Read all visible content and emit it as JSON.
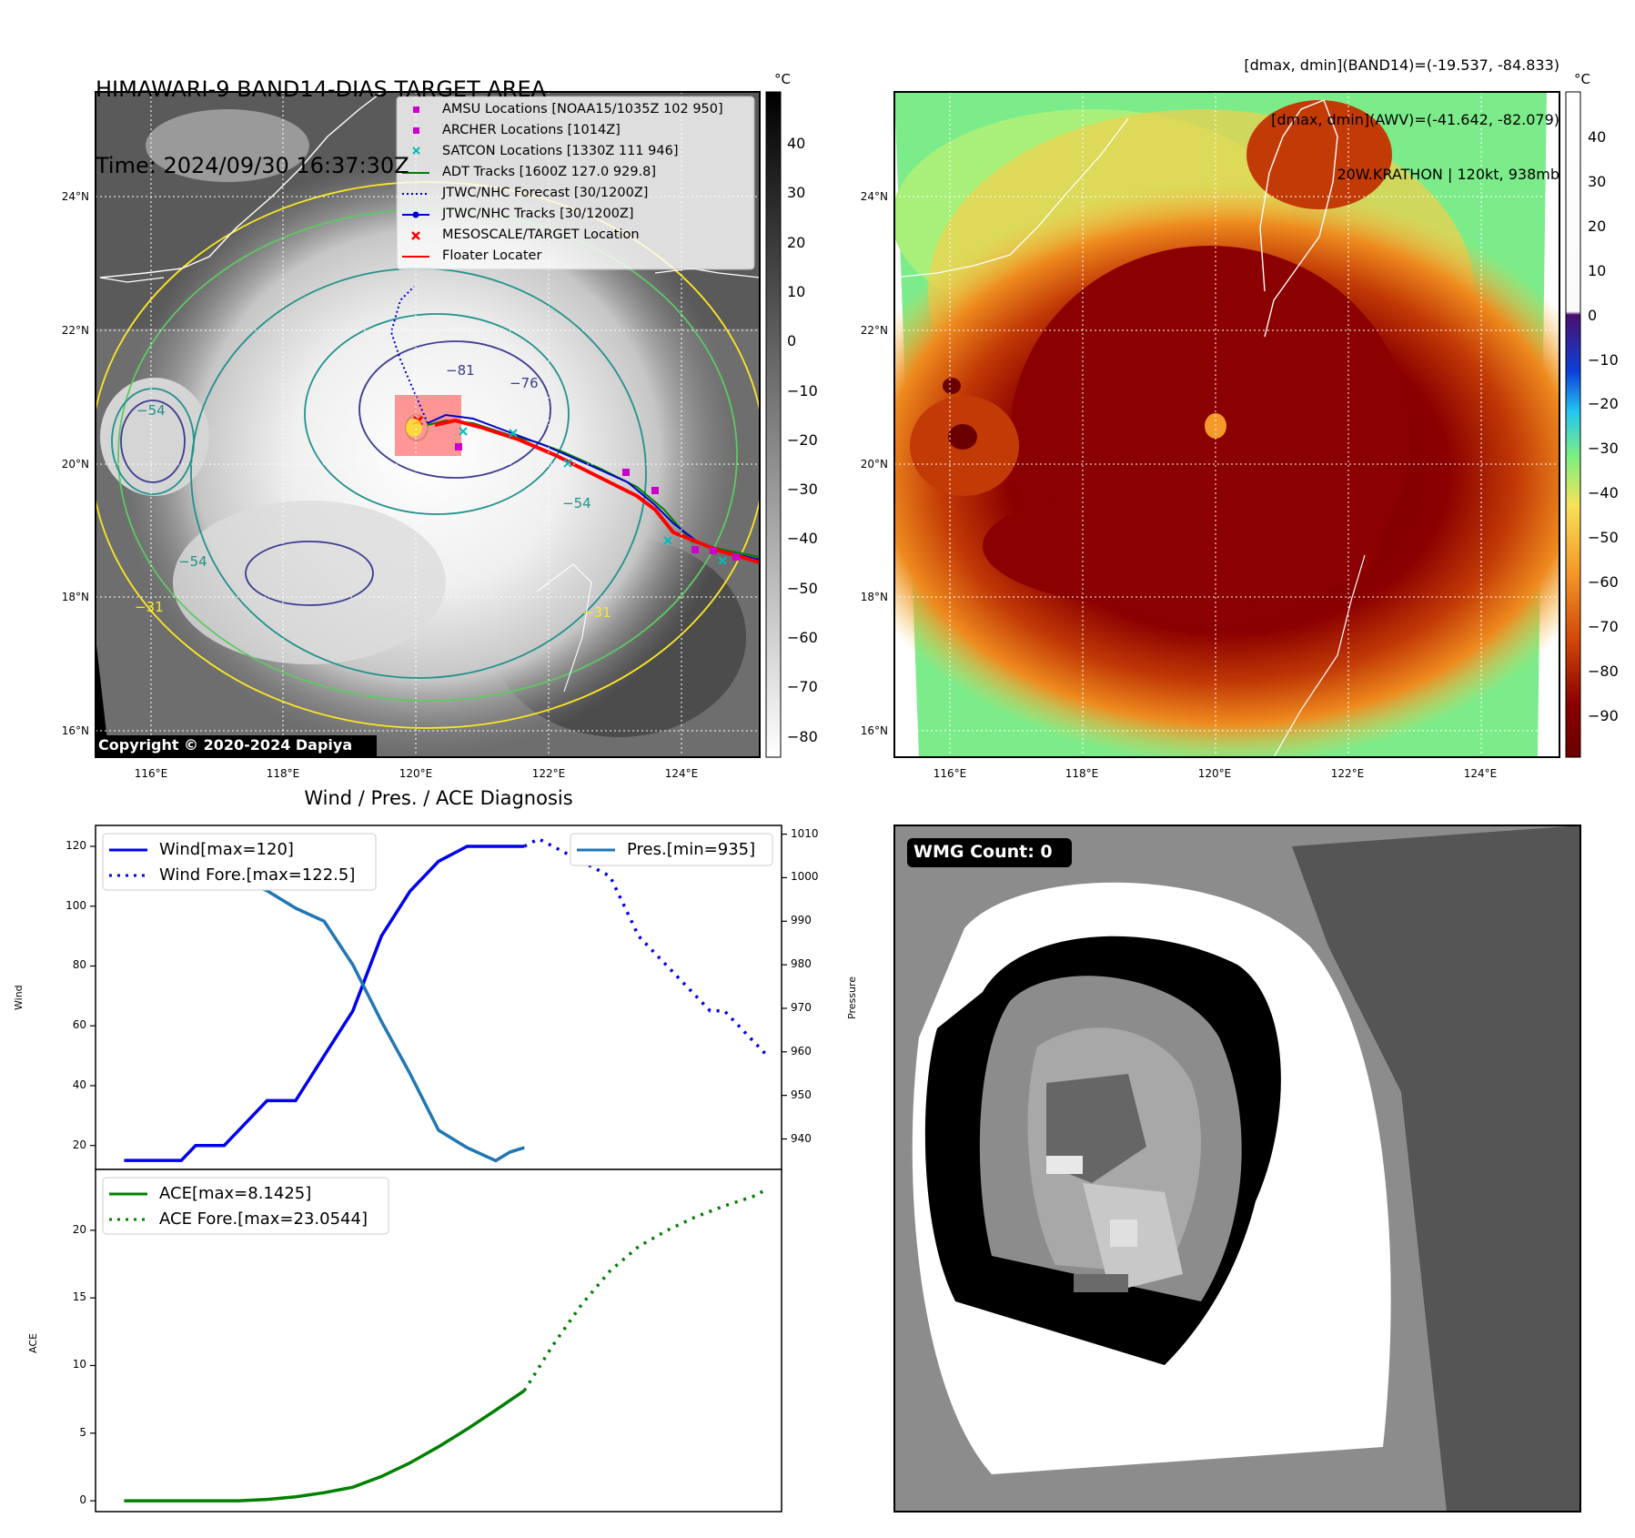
{
  "header": {
    "title_line1": "HIMAWARI-9 BAND14-DIAS TARGET AREA",
    "title_line2": "Time: 2024/09/30 16:37:30Z",
    "stat_line1": "[dmax, dmin](BAND14)=(-19.537, -84.833)",
    "stat_line2": "[dmax, dmin](AWV)=(-41.642, -82.079)",
    "stat_line3": "20W.KRATHON | 120kt, 938mb"
  },
  "colors": {
    "wind": "#0000ee",
    "pressure": "#1f77b4",
    "ace": "#008000",
    "track_red": "#ff0000",
    "amsu": "#cc00cc",
    "satcon": "#00bbbb",
    "adt": "#008000",
    "jtwc": "#0000cc",
    "contour_dark": "#3b3b8f",
    "contour_teal": "#21918c",
    "contour_green": "#5ec962",
    "contour_yellow": "#fde725"
  },
  "ir_panel": {
    "unit": "°C",
    "colorbar_ticks": [
      "40",
      "30",
      "20",
      "10",
      "0",
      "−10",
      "−20",
      "−30",
      "−40",
      "−50",
      "−60",
      "−70",
      "−80"
    ],
    "lat_labels": [
      "24°N",
      "22°N",
      "20°N",
      "18°N",
      "16°N"
    ],
    "lon_labels": [
      "116°E",
      "118°E",
      "120°E",
      "122°E",
      "124°E"
    ],
    "contour_labels": [
      "−81",
      "−76",
      "−54",
      "−54",
      "−54",
      "−31",
      "−31"
    ],
    "copyright": "Copyright © 2020-2024 Dapiya",
    "legend": [
      {
        "label": "AMSU Locations [NOAA15/1035Z 102 950]",
        "icon": "square-marker"
      },
      {
        "label": "ARCHER Locations [1014Z]",
        "icon": "square-marker"
      },
      {
        "label": "SATCON Locations [1330Z 111 946]",
        "icon": "x-marker"
      },
      {
        "label": "ADT Tracks [1600Z 127.0 929.8]",
        "icon": "solid-line"
      },
      {
        "label": "JTWC/NHC Forecast [30/1200Z]",
        "icon": "dotted-line"
      },
      {
        "label": "JTWC/NHC Tracks [30/1200Z]",
        "icon": "line-dot"
      },
      {
        "label": "MESOSCALE/TARGET Location",
        "icon": "x-marker"
      },
      {
        "label": "Floater Locater",
        "icon": "solid-line"
      }
    ]
  },
  "awv_panel": {
    "unit": "°C",
    "colorbar_ticks": [
      "40",
      "30",
      "20",
      "10",
      "0",
      "−10",
      "−20",
      "−30",
      "−40",
      "−50",
      "−60",
      "−70",
      "−80",
      "−90"
    ],
    "lat_labels": [
      "24°N",
      "22°N",
      "20°N",
      "18°N",
      "16°N"
    ],
    "lon_labels": [
      "116°E",
      "118°E",
      "120°E",
      "122°E",
      "124°E"
    ]
  },
  "wmg_panel": {
    "badge": "WMG Count: 0"
  },
  "diagnosis": {
    "title": "Wind / Pres. / ACE Diagnosis"
  },
  "chart_data": [
    {
      "type": "line",
      "title": "Wind / Pres. / ACE Diagnosis",
      "ylabel": "Wind",
      "y2label": "Pressure",
      "ylim": [
        12,
        127
      ],
      "y2lim": [
        933,
        1012
      ],
      "yticks": [
        "20",
        "40",
        "60",
        "80",
        "100",
        "120"
      ],
      "y2ticks": [
        "940",
        "950",
        "960",
        "970",
        "980",
        "990",
        "1000",
        "1010"
      ],
      "xlim": [
        0,
        48
      ],
      "series": [
        {
          "name": "Wind[max=120]",
          "axis": "left",
          "style": "solid",
          "x": [
            2,
            4,
            6,
            7,
            8,
            9,
            10,
            12,
            14,
            16,
            18,
            20,
            22,
            24,
            26,
            28,
            29,
            30
          ],
          "y": [
            15,
            15,
            15,
            20,
            20,
            20,
            25,
            35,
            35,
            50,
            65,
            90,
            105,
            115,
            120,
            120,
            120,
            120
          ]
        },
        {
          "name": "Wind Fore.[max=122.5]",
          "axis": "left",
          "style": "dotted",
          "x": [
            30,
            31,
            32,
            34,
            36,
            37,
            38,
            39,
            40,
            41,
            42,
            43,
            44,
            45,
            46,
            47
          ],
          "y": [
            120,
            122.5,
            120,
            115,
            110,
            100,
            90,
            85,
            80,
            75,
            70,
            65,
            65,
            60,
            55,
            50
          ]
        },
        {
          "name": "Pres.[min=935]",
          "axis": "right",
          "style": "solid",
          "x": [
            2,
            4,
            6,
            8,
            10,
            12,
            14,
            16,
            18,
            20,
            22,
            24,
            26,
            28,
            29,
            30
          ],
          "y": [
            1007,
            1007,
            1005,
            1003,
            1000,
            997,
            993,
            990,
            980,
            967,
            955,
            942,
            938,
            935,
            937,
            938
          ]
        }
      ]
    },
    {
      "type": "line",
      "ylabel": "ACE",
      "ylim": [
        -0.8,
        24.5
      ],
      "yticks": [
        "0",
        "5",
        "10",
        "15",
        "20"
      ],
      "xlim": [
        0,
        48
      ],
      "series": [
        {
          "name": "ACE[max=8.1425]",
          "style": "solid",
          "x": [
            2,
            6,
            10,
            12,
            14,
            16,
            18,
            20,
            22,
            24,
            26,
            28,
            30
          ],
          "y": [
            0,
            0,
            0,
            0.1,
            0.3,
            0.6,
            1.0,
            1.8,
            2.8,
            4.0,
            5.3,
            6.7,
            8.1425
          ]
        },
        {
          "name": "ACE Fore.[max=23.0544]",
          "style": "dotted",
          "x": [
            30,
            32,
            34,
            36,
            38,
            40,
            42,
            44,
            46,
            47
          ],
          "y": [
            8.1425,
            11.5,
            14.5,
            17.0,
            18.8,
            20.0,
            21.0,
            21.8,
            22.5,
            23.0544
          ]
        }
      ]
    }
  ]
}
